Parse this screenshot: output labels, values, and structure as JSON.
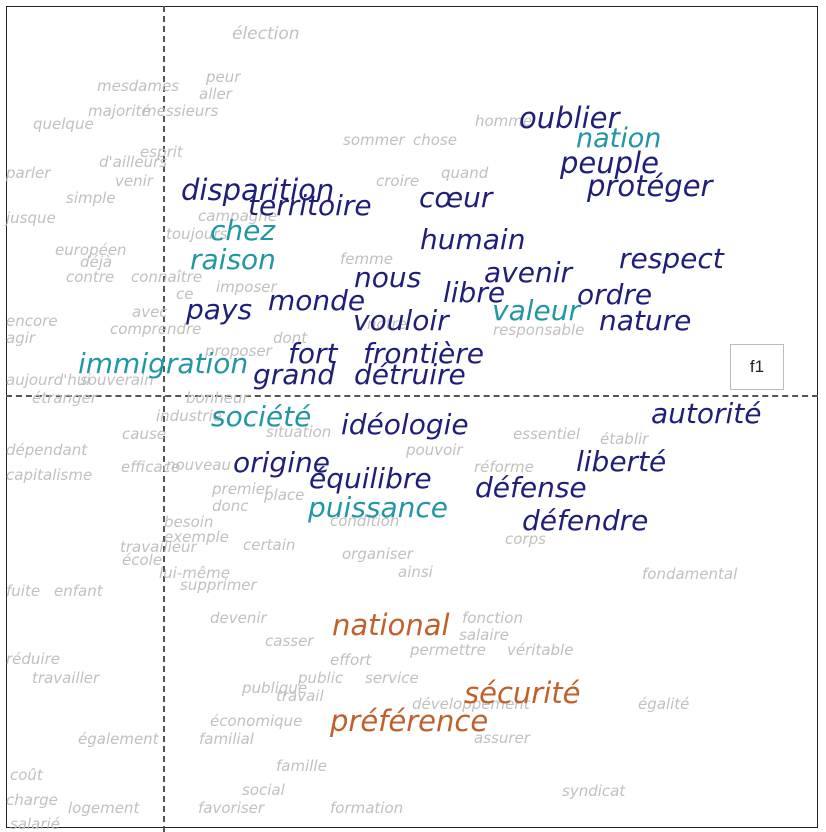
{
  "chart_data": {
    "type": "scatter",
    "subtype": "word-map",
    "title": "",
    "xlabel": "",
    "ylabel": "",
    "grid": false,
    "axes": "dashed-crosshair",
    "legend_label": "f1",
    "legend_placement": "right-middle",
    "colors": {
      "grey": "#bdbdbd",
      "navy": "#1f1f7a",
      "teal": "#2196a6",
      "orange": "#c0602a"
    },
    "words": [
      {
        "text": "élection",
        "group": "grey"
      },
      {
        "text": "mesdames",
        "group": "grey"
      },
      {
        "text": "peur",
        "group": "grey"
      },
      {
        "text": "aller",
        "group": "grey"
      },
      {
        "text": "majorité",
        "group": "grey"
      },
      {
        "text": "messieurs",
        "group": "grey"
      },
      {
        "text": "quelque",
        "group": "grey"
      },
      {
        "text": "homme",
        "group": "grey"
      },
      {
        "text": "sommer",
        "group": "grey"
      },
      {
        "text": "chose",
        "group": "grey"
      },
      {
        "text": "quand",
        "group": "grey"
      },
      {
        "text": "croire",
        "group": "grey"
      },
      {
        "text": "d'ailleurs",
        "group": "grey"
      },
      {
        "text": "esprit",
        "group": "grey"
      },
      {
        "text": "venir",
        "group": "grey"
      },
      {
        "text": "parler",
        "group": "grey"
      },
      {
        "text": "simple",
        "group": "grey"
      },
      {
        "text": "jusque",
        "group": "grey"
      },
      {
        "text": "campagne",
        "group": "grey"
      },
      {
        "text": "toujours",
        "group": "grey"
      },
      {
        "text": "européen",
        "group": "grey"
      },
      {
        "text": "déjà",
        "group": "grey"
      },
      {
        "text": "contre",
        "group": "grey"
      },
      {
        "text": "connaître",
        "group": "grey"
      },
      {
        "text": "femme",
        "group": "grey"
      },
      {
        "text": "imposer",
        "group": "grey"
      },
      {
        "text": "ce",
        "group": "grey"
      },
      {
        "text": "encore",
        "group": "grey"
      },
      {
        "text": "agir",
        "group": "grey"
      },
      {
        "text": "avec",
        "group": "grey"
      },
      {
        "text": "comprendre",
        "group": "grey"
      },
      {
        "text": "notre",
        "group": "grey"
      },
      {
        "text": "dont",
        "group": "grey"
      },
      {
        "text": "proposer",
        "group": "grey"
      },
      {
        "text": "responsable",
        "group": "grey"
      },
      {
        "text": "aujourd'hui",
        "group": "grey"
      },
      {
        "text": "souverain",
        "group": "grey"
      },
      {
        "text": "étranger",
        "group": "grey"
      },
      {
        "text": "bonheur",
        "group": "grey"
      },
      {
        "text": "industrie",
        "group": "grey"
      },
      {
        "text": "cause",
        "group": "grey"
      },
      {
        "text": "situation",
        "group": "grey"
      },
      {
        "text": "essentiel",
        "group": "grey"
      },
      {
        "text": "établir",
        "group": "grey"
      },
      {
        "text": "dépendant",
        "group": "grey"
      },
      {
        "text": "capitalisme",
        "group": "grey"
      },
      {
        "text": "efficace",
        "group": "grey"
      },
      {
        "text": "nouveau",
        "group": "grey"
      },
      {
        "text": "pouvoir",
        "group": "grey"
      },
      {
        "text": "réforme",
        "group": "grey"
      },
      {
        "text": "premier",
        "group": "grey"
      },
      {
        "text": "place",
        "group": "grey"
      },
      {
        "text": "donc",
        "group": "grey"
      },
      {
        "text": "besoin",
        "group": "grey"
      },
      {
        "text": "condition",
        "group": "grey"
      },
      {
        "text": "corps",
        "group": "grey"
      },
      {
        "text": "exemple",
        "group": "grey"
      },
      {
        "text": "certain",
        "group": "grey"
      },
      {
        "text": "travailleur",
        "group": "grey"
      },
      {
        "text": "école",
        "group": "grey"
      },
      {
        "text": "organiser",
        "group": "grey"
      },
      {
        "text": "ainsi",
        "group": "grey"
      },
      {
        "text": "lui-même",
        "group": "grey"
      },
      {
        "text": "supprimer",
        "group": "grey"
      },
      {
        "text": "fondamental",
        "group": "grey"
      },
      {
        "text": "fuite",
        "group": "grey"
      },
      {
        "text": "enfant",
        "group": "grey"
      },
      {
        "text": "devenir",
        "group": "grey"
      },
      {
        "text": "fonction",
        "group": "grey"
      },
      {
        "text": "casser",
        "group": "grey"
      },
      {
        "text": "salaire",
        "group": "grey"
      },
      {
        "text": "effort",
        "group": "grey"
      },
      {
        "text": "permettre",
        "group": "grey"
      },
      {
        "text": "véritable",
        "group": "grey"
      },
      {
        "text": "réduire",
        "group": "grey"
      },
      {
        "text": "travailler",
        "group": "grey"
      },
      {
        "text": "public",
        "group": "grey"
      },
      {
        "text": "service",
        "group": "grey"
      },
      {
        "text": "publique",
        "group": "grey"
      },
      {
        "text": "travail",
        "group": "grey"
      },
      {
        "text": "développement",
        "group": "grey"
      },
      {
        "text": "égalité",
        "group": "grey"
      },
      {
        "text": "économique",
        "group": "grey"
      },
      {
        "text": "également",
        "group": "grey"
      },
      {
        "text": "familial",
        "group": "grey"
      },
      {
        "text": "assurer",
        "group": "grey"
      },
      {
        "text": "famille",
        "group": "grey"
      },
      {
        "text": "coût",
        "group": "grey"
      },
      {
        "text": "social",
        "group": "grey"
      },
      {
        "text": "syndicat",
        "group": "grey"
      },
      {
        "text": "charge",
        "group": "grey"
      },
      {
        "text": "logement",
        "group": "grey"
      },
      {
        "text": "favoriser",
        "group": "grey"
      },
      {
        "text": "formation",
        "group": "grey"
      },
      {
        "text": "salarié",
        "group": "grey"
      },
      {
        "text": "oublier",
        "group": "navy"
      },
      {
        "text": "nation",
        "group": "teal"
      },
      {
        "text": "peuple",
        "group": "navy"
      },
      {
        "text": "protéger",
        "group": "navy"
      },
      {
        "text": "disparition",
        "group": "navy"
      },
      {
        "text": "territoire",
        "group": "navy"
      },
      {
        "text": "cœur",
        "group": "navy"
      },
      {
        "text": "chez",
        "group": "teal"
      },
      {
        "text": "humain",
        "group": "navy"
      },
      {
        "text": "raison",
        "group": "teal"
      },
      {
        "text": "respect",
        "group": "navy"
      },
      {
        "text": "nous",
        "group": "navy"
      },
      {
        "text": "avenir",
        "group": "navy"
      },
      {
        "text": "libre",
        "group": "navy"
      },
      {
        "text": "ordre",
        "group": "navy"
      },
      {
        "text": "pays",
        "group": "navy"
      },
      {
        "text": "monde",
        "group": "navy"
      },
      {
        "text": "valeur",
        "group": "teal"
      },
      {
        "text": "vouloir",
        "group": "navy"
      },
      {
        "text": "nature",
        "group": "navy"
      },
      {
        "text": "immigration",
        "group": "teal"
      },
      {
        "text": "fort",
        "group": "navy"
      },
      {
        "text": "frontière",
        "group": "navy"
      },
      {
        "text": "grand",
        "group": "navy"
      },
      {
        "text": "détruire",
        "group": "navy"
      },
      {
        "text": "autorité",
        "group": "navy"
      },
      {
        "text": "société",
        "group": "teal"
      },
      {
        "text": "idéologie",
        "group": "navy"
      },
      {
        "text": "origine",
        "group": "navy"
      },
      {
        "text": "liberté",
        "group": "navy"
      },
      {
        "text": "équilibre",
        "group": "navy"
      },
      {
        "text": "défense",
        "group": "navy"
      },
      {
        "text": "puissance",
        "group": "teal"
      },
      {
        "text": "défendre",
        "group": "navy"
      },
      {
        "text": "national",
        "group": "orange"
      },
      {
        "text": "sécurité",
        "group": "orange"
      },
      {
        "text": "préférence",
        "group": "orange"
      }
    ]
  }
}
